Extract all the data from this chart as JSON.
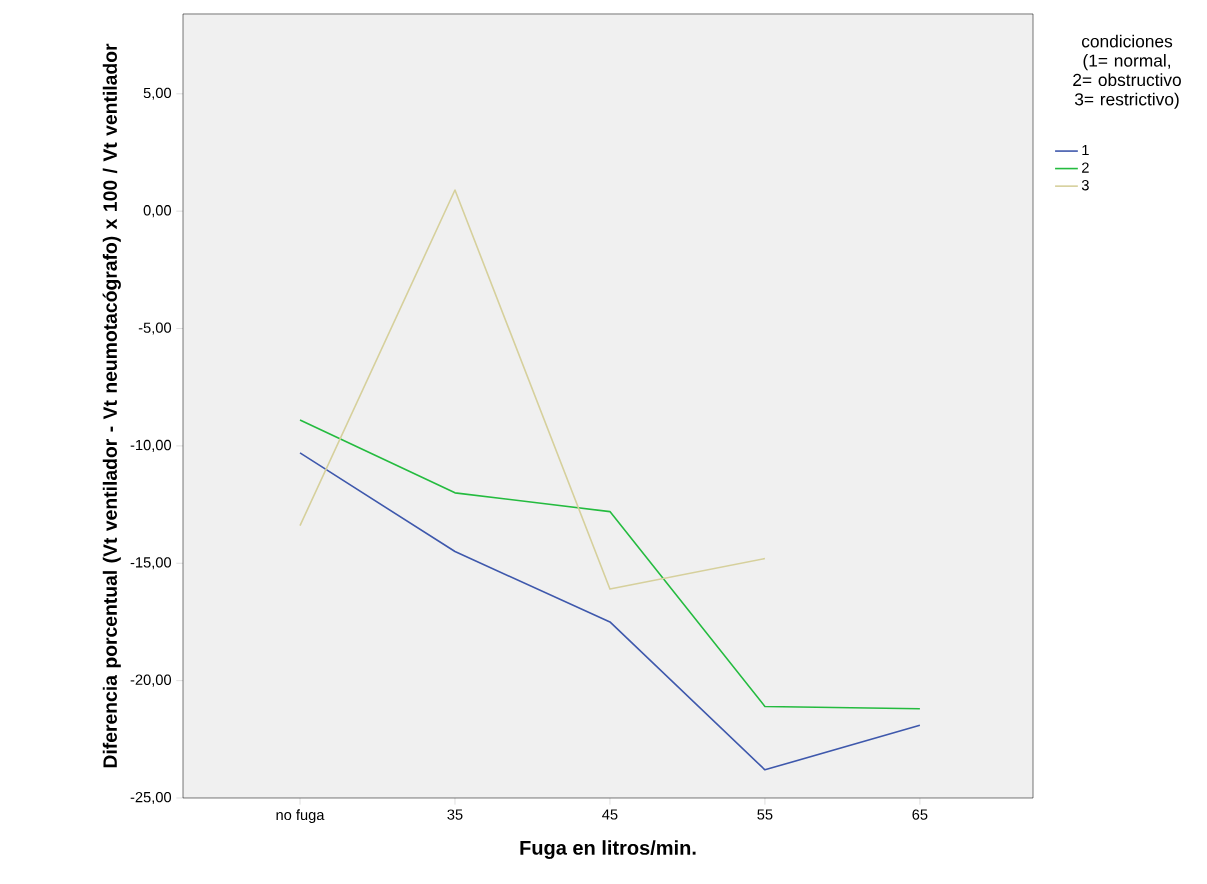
{
  "chart_data": {
    "type": "line",
    "xlabel": "Fuga en litros/min.",
    "ylabel": "Diferencia porcentual (Vt ventilador - Vt neumotacógrafo) x 100 / Vt ventilador",
    "legend_title": "condiciones (1= normal, 2= obstructivo 3= restrictivo)",
    "categories": [
      "no fuga",
      "35",
      "45",
      "55",
      "65"
    ],
    "series": [
      {
        "name": "1",
        "color": "#3e58ac",
        "values": [
          -10.3,
          -14.5,
          -17.5,
          -23.8,
          -21.9
        ]
      },
      {
        "name": "2",
        "color": "#24bb3f",
        "values": [
          -8.9,
          -12.0,
          -12.8,
          -21.1,
          -21.2
        ]
      },
      {
        "name": "3",
        "color": "#d6d09c",
        "values": [
          -13.4,
          0.9,
          -16.1,
          -14.8,
          null
        ]
      }
    ],
    "ylim": [
      -25,
      8.4
    ],
    "yticks": [
      {
        "value": -25,
        "label": "-25,00"
      },
      {
        "value": -20,
        "label": "-20,00"
      },
      {
        "value": -15,
        "label": "-15,00"
      },
      {
        "value": -10,
        "label": "-10,00"
      },
      {
        "value": -5,
        "label": "-5,00"
      },
      {
        "value": 0,
        "label": "0,00"
      },
      {
        "value": 5,
        "label": "5,00"
      }
    ],
    "grid": false,
    "legend": "right",
    "marker": "none",
    "line_style": "solid"
  }
}
